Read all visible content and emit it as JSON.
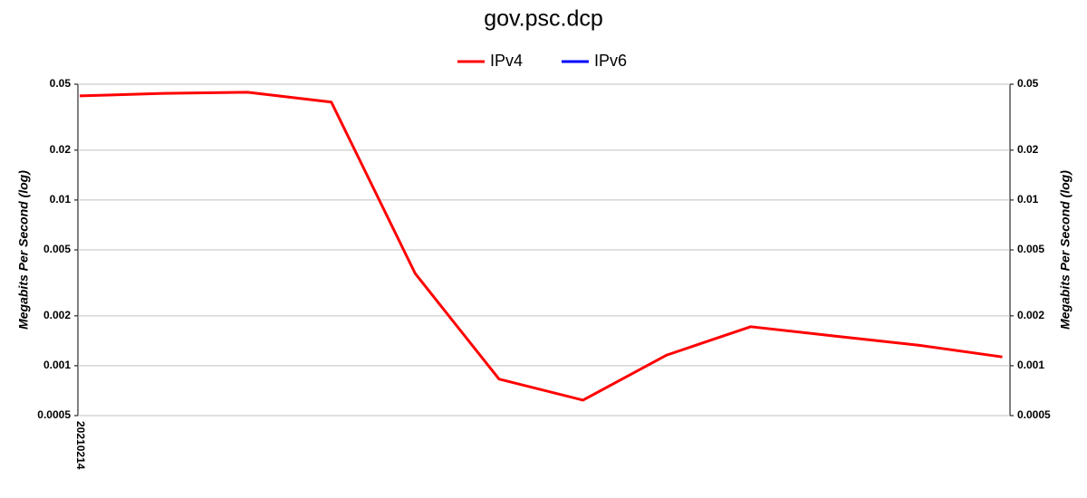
{
  "chart_data": {
    "type": "line",
    "title": "gov.psc.dcp",
    "categories": [
      "20210214",
      null,
      null,
      null,
      null,
      null,
      null,
      null,
      null,
      null,
      null,
      null
    ],
    "series": [
      {
        "name": "IPv4",
        "color": "#ff0000",
        "values": [
          0.0425,
          0.044,
          0.0447,
          0.039,
          0.0036,
          0.00083,
          0.00062,
          0.00116,
          0.00172,
          0.00151,
          0.00133,
          0.00113
        ]
      },
      {
        "name": "IPv6",
        "color": "#0000ff",
        "values": [
          null,
          null,
          null,
          null,
          null,
          null,
          null,
          null,
          null,
          null,
          null,
          null
        ]
      }
    ],
    "y_label": "Megabits Per Second (log)",
    "ylim": [
      0.0005,
      0.05
    ],
    "yticks": [
      0.0005,
      0.001,
      0.002,
      0.005,
      0.01,
      0.02,
      0.05
    ],
    "y2lim": [
      0.0005,
      0.05
    ],
    "y2ticks": [
      0.0005,
      0.001,
      0.002,
      0.005,
      0.01,
      0.02,
      0.05
    ],
    "log_scale": true,
    "grid": true,
    "legend": "top"
  }
}
